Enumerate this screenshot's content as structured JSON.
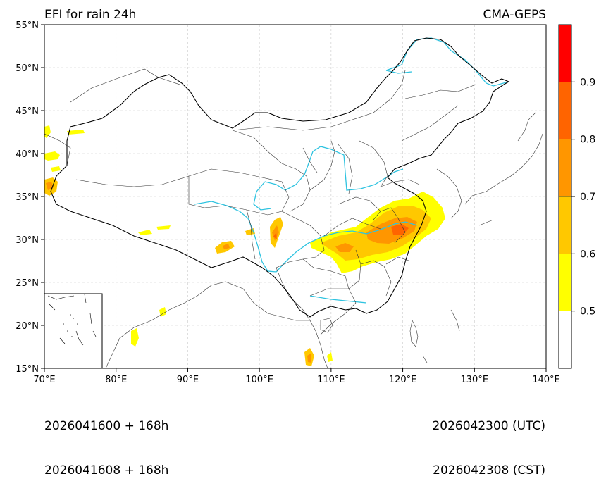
{
  "title": "EFI for rain 24h",
  "source": "CMA-GEPS",
  "map": {
    "lon_range": [
      70,
      140
    ],
    "lat_range": [
      15,
      55
    ],
    "lon_ticks": [
      "70°E",
      "80°E",
      "90°E",
      "100°E",
      "110°E",
      "120°E",
      "130°E",
      "140°E"
    ],
    "lat_ticks": [
      "15°N",
      "20°N",
      "25°N",
      "30°N",
      "35°N",
      "40°N",
      "45°N",
      "50°N",
      "55°N"
    ],
    "gridlines": true,
    "features": [
      "china-boundary",
      "province-boundaries",
      "rivers",
      "coastline",
      "south-china-sea-inset"
    ]
  },
  "colorbar": {
    "levels": [
      0.5,
      0.6,
      0.7,
      0.8,
      0.9
    ],
    "labels": [
      "0.5",
      "0.6",
      "0.7",
      "0.8",
      "0.9"
    ],
    "colors": [
      "#ffffff",
      "#ffff00",
      "#ffc800",
      "#ff9600",
      "#ff6400",
      "#ff0000"
    ]
  },
  "efi_regions": [
    {
      "name": "east-china-rain-band",
      "lon": 118,
      "lat": 31.5,
      "max_level": 0.8
    },
    {
      "name": "sichuan-patch",
      "lon": 101.5,
      "lat": 31,
      "max_level": 0.8
    },
    {
      "name": "tibet-patches",
      "lon": 94,
      "lat": 29.5,
      "max_level": 0.7
    },
    {
      "name": "west-border-patches",
      "lon": 70.5,
      "lat": 38.5,
      "max_level": 0.7
    },
    {
      "name": "indochina-patches",
      "lon": 106.5,
      "lat": 16,
      "max_level": 0.7
    }
  ],
  "footer": {
    "init_utc": "2026041600 + 168h",
    "init_cst": "2026041608 + 168h",
    "valid_utc": "2026042300 (UTC)",
    "valid_cst": "2026042308 (CST)"
  }
}
